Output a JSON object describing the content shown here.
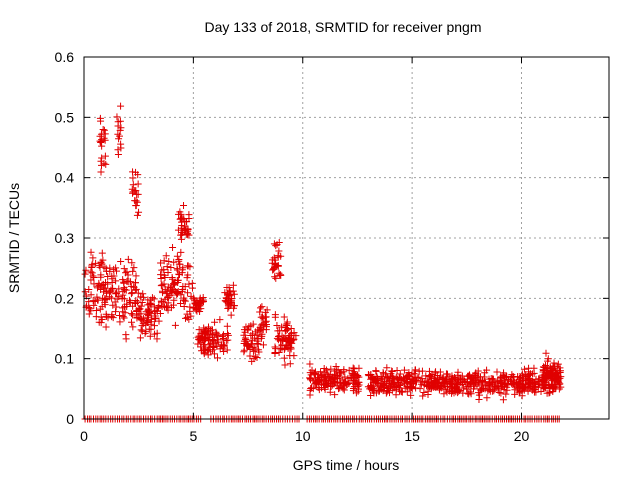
{
  "chart_data": {
    "type": "scatter",
    "title": "Day 133 of 2018, SRMTID for receiver pngm",
    "xlabel": "GPS time / hours",
    "ylabel": "SRMTID / TECUs",
    "xlim": [
      0,
      24
    ],
    "ylim": [
      0,
      0.6
    ],
    "x_ticks": [
      0,
      5,
      10,
      15,
      20
    ],
    "x_tick_labels": [
      "0",
      "5",
      "10",
      "15",
      "20"
    ],
    "y_ticks": [
      0,
      0.1,
      0.2,
      0.3,
      0.4,
      0.5,
      0.6
    ],
    "y_tick_labels": [
      "0",
      "0.1",
      "0.2",
      "0.3",
      "0.4",
      "0.5",
      "0.6"
    ],
    "grid": true,
    "marker": "+",
    "color": "#e00000",
    "series": [
      {
        "name": "SRMTID",
        "description": "approximate envelope of scattered samples (hours, TECU)",
        "segments": [
          {
            "x_start": 0.05,
            "x_end": 1.0,
            "center": 0.21,
            "spread": 0.09
          },
          {
            "x_start": 0.7,
            "x_end": 1.0,
            "center": 0.45,
            "spread": 0.07
          },
          {
            "x_start": 1.0,
            "x_end": 2.4,
            "center": 0.21,
            "spread": 0.09
          },
          {
            "x_start": 1.5,
            "x_end": 1.7,
            "center": 0.47,
            "spread": 0.06
          },
          {
            "x_start": 2.2,
            "x_end": 2.5,
            "center": 0.38,
            "spread": 0.07
          },
          {
            "x_start": 2.4,
            "x_end": 3.5,
            "center": 0.17,
            "spread": 0.06
          },
          {
            "x_start": 3.5,
            "x_end": 5.0,
            "center": 0.22,
            "spread": 0.08
          },
          {
            "x_start": 4.3,
            "x_end": 4.8,
            "center": 0.32,
            "spread": 0.04
          },
          {
            "x_start": 5.0,
            "x_end": 5.5,
            "center": 0.19,
            "spread": 0.02
          },
          {
            "x_start": 5.2,
            "x_end": 6.6,
            "center": 0.13,
            "spread": 0.04
          },
          {
            "x_start": 6.4,
            "x_end": 6.9,
            "center": 0.2,
            "spread": 0.04
          },
          {
            "x_start": 7.3,
            "x_end": 8.0,
            "center": 0.13,
            "spread": 0.04
          },
          {
            "x_start": 8.0,
            "x_end": 8.4,
            "center": 0.16,
            "spread": 0.05
          },
          {
            "x_start": 8.6,
            "x_end": 9.0,
            "center": 0.26,
            "spread": 0.05
          },
          {
            "x_start": 8.7,
            "x_end": 9.7,
            "center": 0.13,
            "spread": 0.05
          },
          {
            "x_start": 10.3,
            "x_end": 12.6,
            "center": 0.065,
            "spread": 0.03
          },
          {
            "x_start": 13.0,
            "x_end": 21.8,
            "center": 0.06,
            "spread": 0.03
          },
          {
            "x_start": 21.0,
            "x_end": 21.8,
            "center": 0.08,
            "spread": 0.03
          }
        ],
        "zero_runs": [
          [
            0.05,
            5.4
          ],
          [
            5.8,
            9.9
          ],
          [
            10.2,
            21.8
          ]
        ]
      }
    ]
  }
}
